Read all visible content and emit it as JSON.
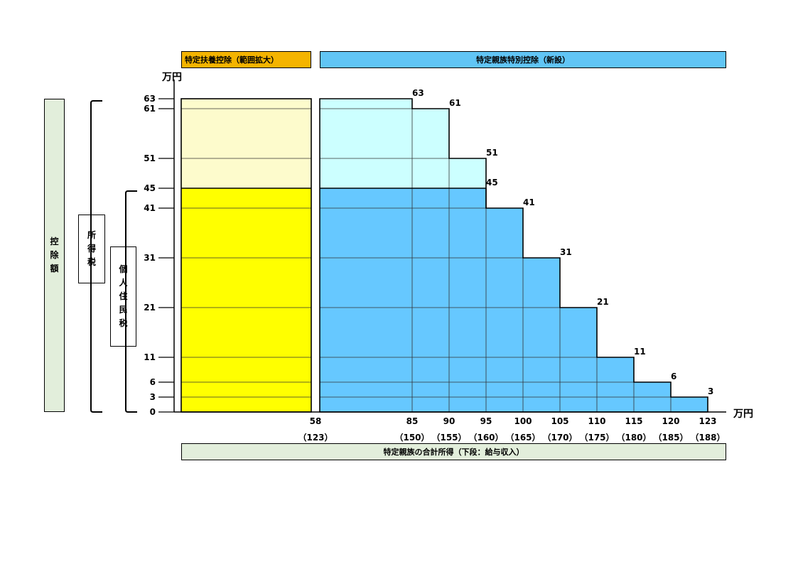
{
  "headers": {
    "expanded": "特定扶養控除（範囲拡大）",
    "new": "特定親族特別控除（新設）",
    "xaxis": "特定親族の合計所得（下段：給与収入）"
  },
  "side_labels": {
    "deduction": [
      "控",
      "除",
      "額"
    ],
    "income_tax": [
      "所",
      "得",
      "税"
    ],
    "resident_tax": [
      "個",
      "人",
      "住",
      "民",
      "税"
    ]
  },
  "units": {
    "y": "万円",
    "x": "万円"
  },
  "chart_data": {
    "type": "bar",
    "ylabel": "万円",
    "xlabel": "万円",
    "ylim": [
      0,
      63
    ],
    "y_ticks": [
      0,
      3,
      6,
      11,
      21,
      31,
      41,
      45,
      51,
      61,
      63
    ],
    "specific_dependent_deduction": {
      "x_upper": 58,
      "x_upper_salary": 123,
      "income_tax_value": 63,
      "resident_tax_value": 45,
      "colors": {
        "income_tax_part": "#fdfbcc",
        "resident_tax_part": "#ffff00"
      }
    },
    "special_deduction": {
      "x_upper_bounds": [
        85,
        90,
        95,
        100,
        105,
        110,
        115,
        120,
        123
      ],
      "x_upper_salary": [
        150,
        155,
        160,
        165,
        170,
        175,
        180,
        185,
        188
      ],
      "income_tax_values": [
        63,
        61,
        51,
        41,
        31,
        21,
        11,
        6,
        3
      ],
      "resident_tax_values": [
        45,
        45,
        45,
        41,
        31,
        21,
        11,
        6,
        3
      ],
      "step_labels": [
        {
          "x": 85,
          "value": "63"
        },
        {
          "x": 90,
          "value": "61"
        },
        {
          "x": 95,
          "value": "51"
        },
        {
          "x": 95,
          "value": "45"
        },
        {
          "x": 100,
          "value": "41"
        },
        {
          "x": 105,
          "value": "31"
        },
        {
          "x": 110,
          "value": "21"
        },
        {
          "x": 115,
          "value": "11"
        },
        {
          "x": 120,
          "value": "6"
        },
        {
          "x": 123,
          "value": "3"
        }
      ],
      "colors": {
        "income_tax_part": "#ccffff",
        "resident_tax_part": "#66c8ff"
      }
    }
  }
}
